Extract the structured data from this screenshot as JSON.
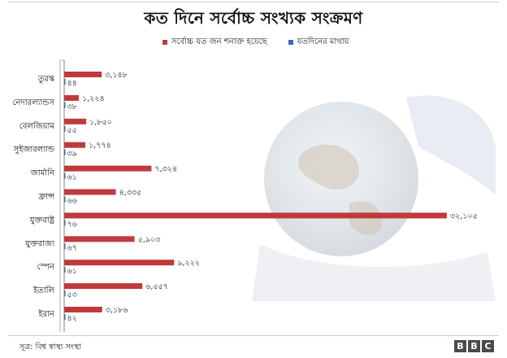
{
  "header": {
    "title": "কত দিনে সর্বোচ্চ সংখ্যক সংক্রমণ"
  },
  "legend": {
    "items": [
      {
        "label": "সর্বোচ্চ যত জন শনাক্ত হয়েছে",
        "color": "#c0393b"
      },
      {
        "label": "যতদিনের মাথায়",
        "color": "#3f67b5"
      }
    ]
  },
  "footer": {
    "source": "সূত্র: বিশ্ব স্বাস্থ্য সংস্থা",
    "logo": [
      "B",
      "B",
      "C"
    ]
  },
  "chart_data": {
    "type": "bar",
    "orientation": "horizontal",
    "title": "কত দিনে সর্বোচ্চ সংখ্যক সংক্রমণ",
    "legend_position": "top",
    "grid": false,
    "xlim": [
      0,
      33000
    ],
    "categories": [
      "তুরস্ক",
      "নেদারল্যান্ডস",
      "বেলজিয়াম",
      "সুইজারল্যান্ড",
      "জার্মানি",
      "ফ্রান্স",
      "যুক্তরাষ্ট্র",
      "যুক্তরাজ্য",
      "স্পেন",
      "ইতালি",
      "ইরান"
    ],
    "series": [
      {
        "name": "সর্বোচ্চ যত জন শনাক্ত হয়েছে",
        "color": "#c0393b",
        "values": [
          3148,
          1224,
          1850,
          1774,
          7324,
          4335,
          32105,
          5903,
          9222,
          6557,
          3186
        ],
        "labels": [
          "৩,১৪৮",
          "১,২২৪",
          "১,৮৫০",
          "১,৭৭৪",
          "৭,৩২৪",
          "৪,৩৩৫",
          "৩২,১০৫",
          "৫,৯০৩",
          "৯,২২২",
          "৬,৫৫৭",
          "৩,১৮৬"
        ]
      },
      {
        "name": "যতদিনের মাথায়",
        "color": "#3f67b5",
        "values": [
          44,
          38,
          55,
          39,
          61,
          66,
          76,
          67,
          61,
          53,
          42
        ],
        "labels": [
          "৪৪",
          "৩৮",
          "৫৫",
          "৩৯",
          "৬১",
          "৬৬",
          "৭৬",
          "৬৭",
          "৬১",
          "৫৩",
          "৪২"
        ]
      }
    ]
  }
}
